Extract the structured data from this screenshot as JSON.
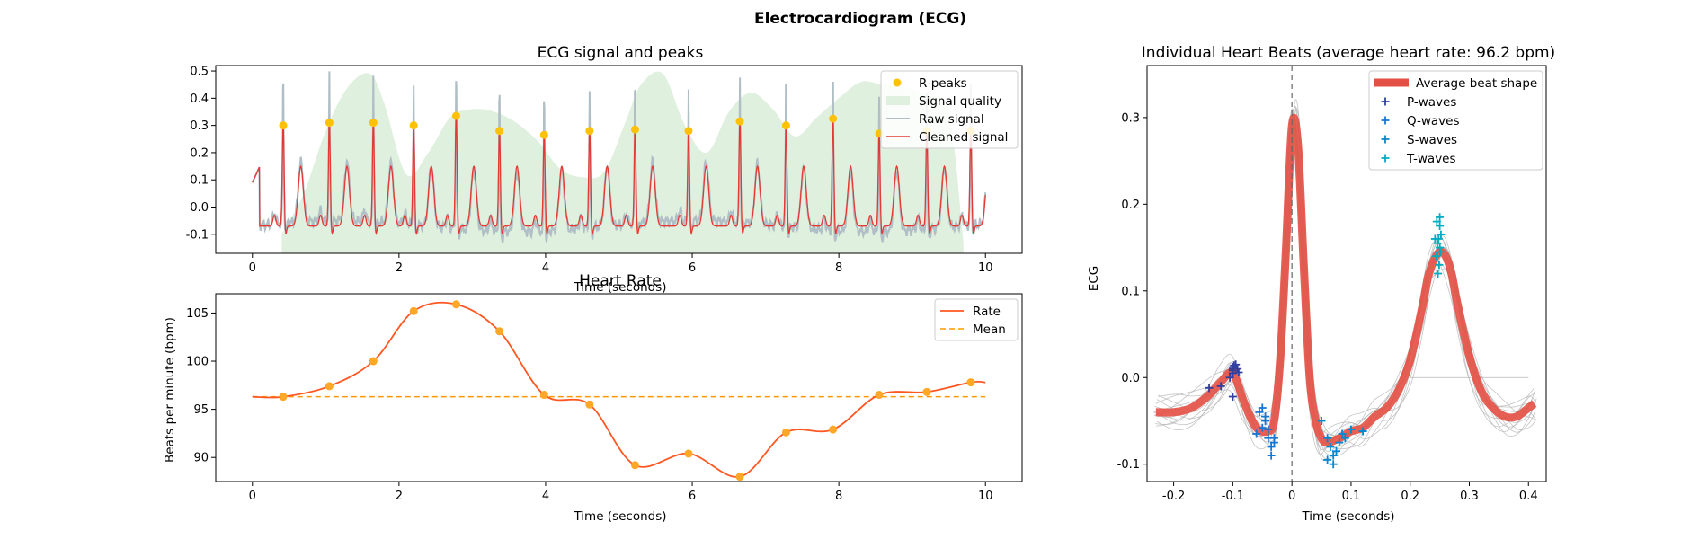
{
  "figure": {
    "title": "Electrocardiogram (ECG)"
  },
  "chart_data": [
    {
      "type": "line",
      "title": "ECG signal and peaks",
      "xlabel": "Time (seconds)",
      "ylabel": "",
      "xlim": [
        -0.5,
        10.5
      ],
      "ylim": [
        -0.17,
        0.52
      ],
      "xticks": [
        0,
        2,
        4,
        6,
        8,
        10
      ],
      "yticks": [
        -0.1,
        0.0,
        0.1,
        0.2,
        0.3,
        0.4,
        0.5
      ],
      "legend": {
        "position": "top-right",
        "entries": [
          "R-peaks",
          "Signal quality",
          "Raw signal",
          "Cleaned signal"
        ]
      },
      "colors": {
        "peaks": "#FFC107",
        "quality": "#DFF0DF",
        "raw": "#B0BEC5",
        "cleaned": "#E53935"
      },
      "r_peaks": {
        "name": "R-peaks",
        "x": [
          0.42,
          1.05,
          1.65,
          2.2,
          2.78,
          3.37,
          3.98,
          4.6,
          5.22,
          5.95,
          6.65,
          7.28,
          7.92,
          8.55,
          9.2,
          9.8
        ],
        "y": [
          0.3,
          0.31,
          0.31,
          0.3,
          0.335,
          0.28,
          0.265,
          0.28,
          0.285,
          0.28,
          0.315,
          0.3,
          0.325,
          0.27,
          0.28,
          0.28
        ]
      },
      "signal_quality": {
        "name": "Signal quality",
        "x": [
          0.4,
          0.7,
          1.0,
          1.3,
          1.6,
          1.8,
          2.1,
          2.4,
          2.7,
          3.0,
          3.3,
          3.6,
          3.9,
          4.2,
          4.5,
          4.8,
          5.1,
          5.3,
          5.6,
          5.9,
          6.2,
          6.5,
          6.8,
          7.1,
          7.4,
          7.7,
          8.0,
          8.3,
          8.6,
          8.9,
          9.2,
          9.5,
          9.7
        ],
        "y": [
          -0.1,
          0.05,
          0.28,
          0.44,
          0.49,
          0.38,
          0.12,
          0.2,
          0.33,
          0.36,
          0.35,
          0.31,
          0.24,
          0.14,
          0.11,
          0.13,
          0.32,
          0.45,
          0.49,
          0.3,
          0.2,
          0.35,
          0.42,
          0.36,
          0.26,
          0.33,
          0.4,
          0.46,
          0.45,
          0.44,
          0.41,
          0.35,
          -0.13
        ]
      },
      "raw_signal": {
        "name": "Raw signal",
        "t_start": 0,
        "t_end": 10,
        "baseline": -0.07
      },
      "cleaned_signal": {
        "name": "Cleaned signal",
        "t_start": 0,
        "t_end": 10,
        "baseline": -0.07
      }
    },
    {
      "type": "line",
      "title": "Heart Rate",
      "xlabel": "Time (seconds)",
      "ylabel": "Beats per minute (bpm)",
      "xlim": [
        -0.5,
        10.5
      ],
      "ylim": [
        87.5,
        107
      ],
      "xticks": [
        0,
        2,
        4,
        6,
        8,
        10
      ],
      "yticks": [
        90,
        95,
        100,
        105
      ],
      "legend": {
        "position": "top-right",
        "entries": [
          "Rate",
          "Mean"
        ]
      },
      "colors": {
        "rate": "#FF5722",
        "points": "#FFA726",
        "mean": "#FF9800"
      },
      "series": [
        {
          "name": "Rate",
          "x": [
            0.42,
            1.05,
            1.65,
            2.2,
            2.78,
            3.37,
            3.98,
            4.6,
            5.22,
            5.95,
            6.65,
            7.28,
            7.92,
            8.55,
            9.2,
            9.8
          ],
          "y": [
            96.3,
            97.4,
            100.0,
            105.2,
            105.9,
            103.1,
            96.5,
            95.5,
            89.2,
            90.4,
            88.0,
            92.6,
            92.9,
            96.5,
            96.8,
            97.8
          ]
        }
      ],
      "mean": {
        "name": "Mean",
        "value": 96.3
      },
      "start_x": 0,
      "start_y": 96.3,
      "end_x": 10,
      "end_y": 97.8
    },
    {
      "type": "line",
      "title": "Individual Heart Beats (average heart rate: 96.2 bpm)",
      "xlabel": "Time (seconds)",
      "ylabel": "ECG",
      "xlim": [
        -0.245,
        0.43
      ],
      "ylim": [
        -0.12,
        0.36
      ],
      "xticks": [
        -0.2,
        -0.1,
        0.0,
        0.1,
        0.2,
        0.3,
        0.4
      ],
      "yticks": [
        -0.1,
        0.0,
        0.1,
        0.2,
        0.3
      ],
      "legend": {
        "position": "top-right",
        "entries": [
          "Average beat shape",
          "P-waves",
          "Q-waves",
          "S-waves",
          "T-waves"
        ]
      },
      "colors": {
        "average": "#E45045",
        "beats": "#B5B5B5",
        "p": "#303F9F",
        "q": "#1976D2",
        "s": "#0288D1",
        "t": "#00ACC1"
      },
      "average_beat": {
        "name": "Average beat shape",
        "x": [
          -0.23,
          -0.2,
          -0.17,
          -0.14,
          -0.12,
          -0.1,
          -0.08,
          -0.06,
          -0.04,
          -0.03,
          -0.02,
          -0.01,
          0.0,
          0.01,
          0.02,
          0.03,
          0.04,
          0.05,
          0.06,
          0.08,
          0.1,
          0.12,
          0.14,
          0.16,
          0.18,
          0.2,
          0.22,
          0.23,
          0.24,
          0.25,
          0.26,
          0.27,
          0.28,
          0.3,
          0.32,
          0.34,
          0.36,
          0.38,
          0.4,
          0.41
        ],
        "y": [
          -0.04,
          -0.04,
          -0.035,
          -0.02,
          -0.005,
          0.005,
          -0.03,
          -0.058,
          -0.062,
          -0.05,
          0.02,
          0.15,
          0.29,
          0.27,
          0.13,
          0.0,
          -0.05,
          -0.07,
          -0.075,
          -0.07,
          -0.062,
          -0.058,
          -0.045,
          -0.035,
          -0.015,
          0.02,
          0.08,
          0.115,
          0.135,
          0.145,
          0.14,
          0.12,
          0.085,
          0.025,
          -0.015,
          -0.035,
          -0.045,
          -0.045,
          -0.035,
          -0.03
        ]
      },
      "p_waves": {
        "name": "P-waves",
        "x": [
          -0.14,
          -0.12,
          -0.1,
          -0.1,
          -0.095,
          -0.1,
          -0.092,
          -0.1,
          -0.105,
          -0.098,
          -0.09,
          -0.1
        ],
        "y": [
          -0.012,
          -0.01,
          0.012,
          0.008,
          0.015,
          0.005,
          0.01,
          -0.022,
          0.0,
          0.014,
          0.006,
          0.01
        ]
      },
      "q_waves": {
        "name": "Q-waves",
        "x": [
          -0.06,
          -0.05,
          -0.045,
          -0.04,
          -0.035,
          -0.03,
          -0.05,
          -0.04,
          -0.045,
          -0.03,
          -0.055,
          -0.035
        ],
        "y": [
          -0.065,
          -0.035,
          -0.05,
          -0.07,
          -0.09,
          -0.075,
          -0.058,
          -0.06,
          -0.045,
          -0.07,
          -0.04,
          -0.08
        ]
      },
      "s_waves": {
        "name": "S-waves",
        "x": [
          0.05,
          0.06,
          0.065,
          0.07,
          0.075,
          0.08,
          0.085,
          0.09,
          0.1,
          0.12,
          0.06,
          0.07
        ],
        "y": [
          -0.05,
          -0.07,
          -0.08,
          -0.09,
          -0.085,
          -0.075,
          -0.065,
          -0.07,
          -0.06,
          -0.062,
          -0.095,
          -0.1
        ]
      },
      "t_waves": {
        "name": "T-waves",
        "x": [
          0.245,
          0.25,
          0.248,
          0.252,
          0.246,
          0.25,
          0.244,
          0.249,
          0.247,
          0.251,
          0.242,
          0.25
        ],
        "y": [
          0.18,
          0.175,
          0.16,
          0.165,
          0.155,
          0.15,
          0.14,
          0.13,
          0.12,
          0.145,
          0.16,
          0.185
        ]
      }
    }
  ]
}
